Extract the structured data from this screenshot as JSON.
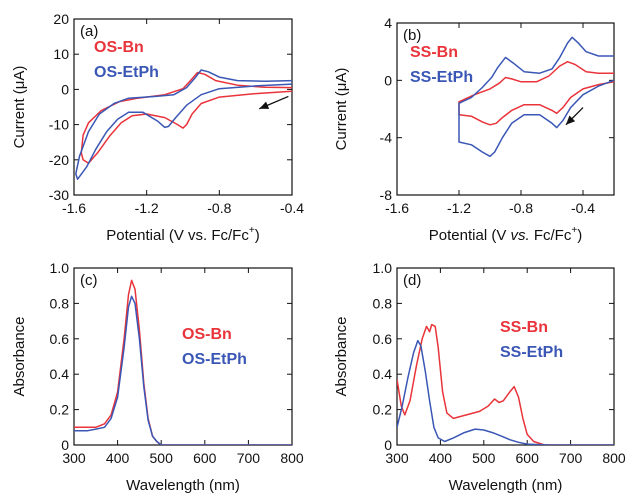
{
  "chart_data": [
    {
      "panel_label": "(a)",
      "type": "line",
      "xlabel_main": "Potential (V vs. Fc/Fc",
      "xlabel_sup": "+",
      "xlabel_end": ")",
      "ylabel": "Current (μA)",
      "xlim": [
        -1.6,
        -0.4
      ],
      "ylim": [
        -30,
        20
      ],
      "xticks": [
        "-1.6",
        "-1.2",
        "-0.8",
        "-0.4"
      ],
      "xtick_values": [
        -1.6,
        -1.2,
        -0.8,
        -0.4
      ],
      "yticks": [
        "-30",
        "-20",
        "-10",
        "0",
        "10",
        "20"
      ],
      "ytick_values": [
        -30,
        -20,
        -10,
        0,
        10,
        20
      ],
      "arrow": {
        "from": [
          -0.42,
          -2.0
        ],
        "to": [
          -0.58,
          -5.5
        ]
      },
      "series": [
        {
          "name": "OS-Bn",
          "color": "#e8343a",
          "points": [
            [
              -0.4,
              -0.5
            ],
            [
              -0.6,
              -1.2
            ],
            [
              -0.8,
              -2.2
            ],
            [
              -0.9,
              -4.0
            ],
            [
              -0.95,
              -7.0
            ],
            [
              -0.98,
              -10.0
            ],
            [
              -1.0,
              -11.0
            ],
            [
              -1.03,
              -10.0
            ],
            [
              -1.1,
              -8.0
            ],
            [
              -1.2,
              -7.0
            ],
            [
              -1.28,
              -7.5
            ],
            [
              -1.34,
              -9.5
            ],
            [
              -1.4,
              -13.0
            ],
            [
              -1.47,
              -18.0
            ],
            [
              -1.52,
              -21.0
            ],
            [
              -1.55,
              -20.0
            ],
            [
              -1.56,
              -18.0
            ],
            [
              -1.55,
              -13.0
            ],
            [
              -1.52,
              -9.5
            ],
            [
              -1.45,
              -6.0
            ],
            [
              -1.35,
              -3.5
            ],
            [
              -1.25,
              -2.5
            ],
            [
              -1.1,
              -1.5
            ],
            [
              -1.0,
              0.2
            ],
            [
              -0.95,
              3.0
            ],
            [
              -0.92,
              4.8
            ],
            [
              -0.88,
              4.3
            ],
            [
              -0.82,
              2.5
            ],
            [
              -0.7,
              1.2
            ],
            [
              -0.55,
              0.6
            ],
            [
              -0.4,
              0.5
            ]
          ]
        },
        {
          "name": "OS-EtPh",
          "color": "#3a57b5",
          "points": [
            [
              -0.4,
              1.5
            ],
            [
              -0.6,
              1.0
            ],
            [
              -0.8,
              0.2
            ],
            [
              -0.9,
              -1.5
            ],
            [
              -0.98,
              -4.5
            ],
            [
              -1.04,
              -8.0
            ],
            [
              -1.08,
              -10.5
            ],
            [
              -1.1,
              -10.8
            ],
            [
              -1.14,
              -9.0
            ],
            [
              -1.22,
              -6.5
            ],
            [
              -1.3,
              -6.5
            ],
            [
              -1.36,
              -8.5
            ],
            [
              -1.42,
              -12.0
            ],
            [
              -1.48,
              -17.0
            ],
            [
              -1.53,
              -22.0
            ],
            [
              -1.58,
              -25.5
            ],
            [
              -1.59,
              -24.0
            ],
            [
              -1.57,
              -19.0
            ],
            [
              -1.52,
              -12.0
            ],
            [
              -1.46,
              -7.0
            ],
            [
              -1.38,
              -4.0
            ],
            [
              -1.3,
              -2.5
            ],
            [
              -1.15,
              -2.0
            ],
            [
              -1.05,
              -1.5
            ],
            [
              -0.98,
              0.5
            ],
            [
              -0.93,
              3.5
            ],
            [
              -0.9,
              5.5
            ],
            [
              -0.86,
              5.0
            ],
            [
              -0.8,
              3.5
            ],
            [
              -0.7,
              2.5
            ],
            [
              -0.55,
              2.3
            ],
            [
              -0.4,
              2.5
            ]
          ]
        }
      ]
    },
    {
      "panel_label": "(b)",
      "type": "line",
      "xlabel_main": "Potential (V ",
      "xlabel_italic": "vs.",
      "xlabel_rest": " Fc/Fc",
      "xlabel_sup": "+",
      "xlabel_end": ")",
      "ylabel": "Current (μA)",
      "xlim": [
        -1.6,
        -0.2
      ],
      "ylim": [
        -8,
        4
      ],
      "xticks": [
        "-1.6",
        "-1.2",
        "-0.8",
        "-0.4"
      ],
      "xtick_values": [
        -1.6,
        -1.2,
        -0.8,
        -0.4
      ],
      "yticks": [
        "-8",
        "-4",
        "0",
        "4"
      ],
      "ytick_values": [
        -8,
        -4,
        0,
        4
      ],
      "arrow": {
        "from": [
          -0.4,
          -1.9
        ],
        "to": [
          -0.51,
          -3.1
        ]
      },
      "series": [
        {
          "name": "SS-Bn",
          "color": "#e8343a",
          "points": [
            [
              -0.2,
              -0.1
            ],
            [
              -0.3,
              -0.3
            ],
            [
              -0.4,
              -0.6
            ],
            [
              -0.48,
              -1.2
            ],
            [
              -0.53,
              -1.9
            ],
            [
              -0.57,
              -2.3
            ],
            [
              -0.6,
              -2.1
            ],
            [
              -0.68,
              -1.7
            ],
            [
              -0.78,
              -1.7
            ],
            [
              -0.86,
              -2.1
            ],
            [
              -0.92,
              -2.6
            ],
            [
              -0.96,
              -3.0
            ],
            [
              -1.0,
              -3.1
            ],
            [
              -1.05,
              -2.9
            ],
            [
              -1.12,
              -2.5
            ],
            [
              -1.2,
              -2.4
            ],
            [
              -1.2,
              -1.5
            ],
            [
              -1.1,
              -1.0
            ],
            [
              -1.0,
              -0.6
            ],
            [
              -0.94,
              -0.2
            ],
            [
              -0.9,
              0.2
            ],
            [
              -0.86,
              0.1
            ],
            [
              -0.8,
              -0.1
            ],
            [
              -0.7,
              -0.1
            ],
            [
              -0.62,
              0.3
            ],
            [
              -0.55,
              1.0
            ],
            [
              -0.5,
              1.3
            ],
            [
              -0.45,
              1.1
            ],
            [
              -0.38,
              0.6
            ],
            [
              -0.3,
              0.5
            ],
            [
              -0.2,
              0.5
            ]
          ]
        },
        {
          "name": "SS-EtPh",
          "color": "#3a57b5",
          "points": [
            [
              -0.2,
              0.0
            ],
            [
              -0.3,
              -0.4
            ],
            [
              -0.4,
              -1.0
            ],
            [
              -0.48,
              -1.9
            ],
            [
              -0.53,
              -2.8
            ],
            [
              -0.57,
              -3.3
            ],
            [
              -0.6,
              -3.0
            ],
            [
              -0.68,
              -2.4
            ],
            [
              -0.78,
              -2.4
            ],
            [
              -0.86,
              -3.0
            ],
            [
              -0.92,
              -4.0
            ],
            [
              -0.97,
              -5.0
            ],
            [
              -1.0,
              -5.3
            ],
            [
              -1.05,
              -5.0
            ],
            [
              -1.12,
              -4.5
            ],
            [
              -1.2,
              -4.3
            ],
            [
              -1.2,
              -1.6
            ],
            [
              -1.12,
              -1.2
            ],
            [
              -1.05,
              -0.5
            ],
            [
              -0.99,
              0.2
            ],
            [
              -0.95,
              0.9
            ],
            [
              -0.9,
              1.6
            ],
            [
              -0.85,
              1.2
            ],
            [
              -0.78,
              0.6
            ],
            [
              -0.68,
              0.5
            ],
            [
              -0.6,
              0.8
            ],
            [
              -0.55,
              1.6
            ],
            [
              -0.5,
              2.6
            ],
            [
              -0.47,
              3.0
            ],
            [
              -0.43,
              2.6
            ],
            [
              -0.38,
              2.0
            ],
            [
              -0.3,
              1.7
            ],
            [
              -0.2,
              1.7
            ]
          ]
        }
      ]
    },
    {
      "panel_label": "(c)",
      "type": "line",
      "xlabel": "Wavelength (nm)",
      "ylabel": "Absorbance",
      "xlim": [
        300,
        800
      ],
      "ylim": [
        0,
        1.0
      ],
      "xticks": [
        "300",
        "400",
        "500",
        "600",
        "700",
        "800"
      ],
      "xtick_values": [
        300,
        400,
        500,
        600,
        700,
        800
      ],
      "yticks": [
        "0",
        "0.2",
        "0.4",
        "0.6",
        "0.8",
        "1.0"
      ],
      "ytick_values": [
        0,
        0.2,
        0.4,
        0.6,
        0.8,
        1.0
      ],
      "series": [
        {
          "name": "OS-Bn",
          "color": "#e8343a",
          "points": [
            [
              300,
              0.1
            ],
            [
              330,
              0.1
            ],
            [
              350,
              0.1
            ],
            [
              370,
              0.12
            ],
            [
              385,
              0.17
            ],
            [
              400,
              0.3
            ],
            [
              415,
              0.6
            ],
            [
              425,
              0.85
            ],
            [
              432,
              0.93
            ],
            [
              440,
              0.88
            ],
            [
              450,
              0.65
            ],
            [
              460,
              0.35
            ],
            [
              470,
              0.15
            ],
            [
              480,
              0.05
            ],
            [
              490,
              0.02
            ],
            [
              500,
              0.0
            ],
            [
              800,
              0.0
            ]
          ]
        },
        {
          "name": "OS-EtPh",
          "color": "#3a57b5",
          "points": [
            [
              300,
              0.08
            ],
            [
              330,
              0.08
            ],
            [
              350,
              0.09
            ],
            [
              370,
              0.1
            ],
            [
              385,
              0.15
            ],
            [
              400,
              0.27
            ],
            [
              415,
              0.55
            ],
            [
              425,
              0.78
            ],
            [
              432,
              0.84
            ],
            [
              440,
              0.8
            ],
            [
              450,
              0.6
            ],
            [
              460,
              0.33
            ],
            [
              470,
              0.14
            ],
            [
              480,
              0.05
            ],
            [
              490,
              0.02
            ],
            [
              500,
              0.0
            ],
            [
              800,
              0.0
            ]
          ]
        }
      ]
    },
    {
      "panel_label": "(d)",
      "type": "line",
      "xlabel": "Wavelength (nm)",
      "ylabel": "Absorbance",
      "xlim": [
        300,
        800
      ],
      "ylim": [
        0,
        1.0
      ],
      "xticks": [
        "300",
        "400",
        "500",
        "600",
        "700",
        "800"
      ],
      "xtick_values": [
        300,
        400,
        500,
        600,
        700,
        800
      ],
      "yticks": [
        "0",
        "0.2",
        "0.4",
        "0.6",
        "0.8",
        "1.0"
      ],
      "ytick_values": [
        0,
        0.2,
        0.4,
        0.6,
        0.8,
        1.0
      ],
      "series": [
        {
          "name": "SS-Bn",
          "color": "#e8343a",
          "points": [
            [
              300,
              0.37
            ],
            [
              310,
              0.22
            ],
            [
              318,
              0.17
            ],
            [
              330,
              0.25
            ],
            [
              345,
              0.45
            ],
            [
              358,
              0.6
            ],
            [
              368,
              0.67
            ],
            [
              375,
              0.64
            ],
            [
              380,
              0.68
            ],
            [
              388,
              0.67
            ],
            [
              395,
              0.55
            ],
            [
              405,
              0.3
            ],
            [
              415,
              0.18
            ],
            [
              430,
              0.15
            ],
            [
              460,
              0.17
            ],
            [
              490,
              0.19
            ],
            [
              510,
              0.22
            ],
            [
              525,
              0.26
            ],
            [
              535,
              0.24
            ],
            [
              545,
              0.25
            ],
            [
              560,
              0.3
            ],
            [
              570,
              0.33
            ],
            [
              580,
              0.27
            ],
            [
              590,
              0.15
            ],
            [
              600,
              0.06
            ],
            [
              615,
              0.02
            ],
            [
              640,
              0.0
            ],
            [
              800,
              0.0
            ]
          ]
        },
        {
          "name": "SS-EtPh",
          "color": "#3a57b5",
          "points": [
            [
              300,
              0.1
            ],
            [
              312,
              0.22
            ],
            [
              325,
              0.38
            ],
            [
              338,
              0.52
            ],
            [
              348,
              0.59
            ],
            [
              355,
              0.56
            ],
            [
              365,
              0.42
            ],
            [
              375,
              0.25
            ],
            [
              385,
              0.1
            ],
            [
              395,
              0.04
            ],
            [
              410,
              0.02
            ],
            [
              430,
              0.04
            ],
            [
              455,
              0.07
            ],
            [
              480,
              0.09
            ],
            [
              500,
              0.085
            ],
            [
              520,
              0.07
            ],
            [
              540,
              0.05
            ],
            [
              560,
              0.03
            ],
            [
              580,
              0.015
            ],
            [
              600,
              0.005
            ],
            [
              650,
              0.0
            ],
            [
              800,
              0.0
            ]
          ]
        }
      ]
    }
  ]
}
